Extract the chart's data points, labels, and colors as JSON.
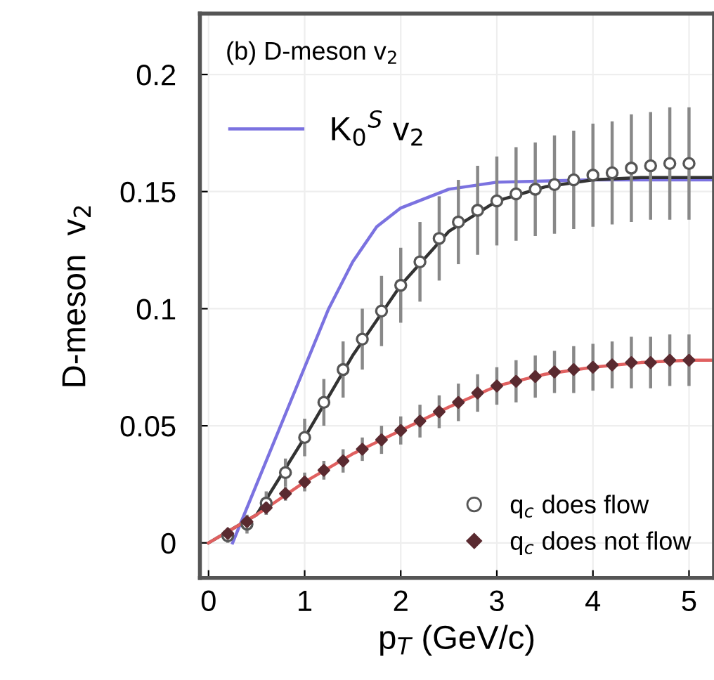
{
  "chart_data": {
    "type": "scatter",
    "title": "(b) D-meson v$_{2}$",
    "xlabel": "p$_{T}$ (GeV/c)",
    "ylabel": "D-meson  v$_{2}$",
    "xlim": [
      -0.09,
      5.26
    ],
    "ylim": [
      -0.015,
      0.226
    ],
    "xticks": [
      0,
      1,
      2,
      3,
      4,
      5
    ],
    "yticks": [
      0,
      0.05,
      0.1,
      0.15,
      0.2
    ],
    "grid": true,
    "legend": "bottom right",
    "series": [
      {
        "type": "line",
        "name": "K$_{0}$$^{S}$ v$_{2}$",
        "color": "#7b72e0",
        "x": [
          0.25,
          0.5,
          0.75,
          1,
          1.25,
          1.5,
          1.75,
          2,
          2.5,
          3,
          4,
          5.26
        ],
        "values": [
          0,
          0.025,
          0.05,
          0.075,
          0.1,
          0.12,
          0.135,
          0.143,
          0.151,
          0.154,
          0.155,
          0.155
        ]
      },
      {
        "type": "line",
        "color": "#333333",
        "x": [
          0,
          0.5,
          1,
          1.5,
          2,
          2.5,
          3,
          3.5,
          4,
          4.5,
          5,
          5.26
        ],
        "values": [
          0,
          0.012,
          0.045,
          0.08,
          0.11,
          0.133,
          0.146,
          0.152,
          0.155,
          0.156,
          0.156,
          0.156
        ]
      },
      {
        "type": "line",
        "color": "#e06060",
        "x": [
          0,
          0.5,
          1,
          1.5,
          2,
          2.5,
          3,
          3.5,
          4,
          4.5,
          5,
          5.26
        ],
        "values": [
          0,
          0.012,
          0.026,
          0.038,
          0.048,
          0.058,
          0.067,
          0.072,
          0.075,
          0.077,
          0.078,
          0.078
        ]
      },
      {
        "name": "q$_{c}$ does flow",
        "marker": "circle",
        "color": "#555555",
        "x": [
          0.2,
          0.4,
          0.6,
          0.8,
          1.0,
          1.2,
          1.4,
          1.6,
          1.8,
          2.0,
          2.2,
          2.4,
          2.6,
          2.8,
          3.0,
          3.2,
          3.4,
          3.6,
          3.8,
          4.0,
          4.2,
          4.4,
          4.6,
          4.8,
          5.0
        ],
        "values": [
          0.003,
          0.008,
          0.017,
          0.03,
          0.045,
          0.06,
          0.074,
          0.087,
          0.099,
          0.11,
          0.12,
          0.13,
          0.137,
          0.142,
          0.146,
          0.149,
          0.151,
          0.153,
          0.155,
          0.157,
          0.158,
          0.16,
          0.161,
          0.162,
          0.162
        ],
        "errors": [
          0.003,
          0.004,
          0.005,
          0.006,
          0.008,
          0.01,
          0.012,
          0.013,
          0.015,
          0.016,
          0.017,
          0.018,
          0.018,
          0.019,
          0.019,
          0.02,
          0.02,
          0.021,
          0.021,
          0.022,
          0.022,
          0.023,
          0.023,
          0.024,
          0.024
        ]
      },
      {
        "name": "q$_{c}$ does not flow",
        "marker": "diamond",
        "color": "#5a2a30",
        "x": [
          0.2,
          0.4,
          0.6,
          0.8,
          1.0,
          1.2,
          1.4,
          1.6,
          1.8,
          2.0,
          2.2,
          2.4,
          2.6,
          2.8,
          3.0,
          3.2,
          3.4,
          3.6,
          3.8,
          4.0,
          4.2,
          4.4,
          4.6,
          4.8,
          5.0
        ],
        "values": [
          0.004,
          0.009,
          0.015,
          0.021,
          0.026,
          0.031,
          0.035,
          0.04,
          0.044,
          0.048,
          0.052,
          0.056,
          0.06,
          0.064,
          0.067,
          0.069,
          0.071,
          0.073,
          0.074,
          0.075,
          0.076,
          0.077,
          0.077,
          0.078,
          0.078
        ],
        "errors": [
          0.002,
          0.002,
          0.003,
          0.003,
          0.004,
          0.004,
          0.005,
          0.005,
          0.006,
          0.006,
          0.007,
          0.007,
          0.008,
          0.008,
          0.008,
          0.009,
          0.009,
          0.009,
          0.01,
          0.01,
          0.01,
          0.011,
          0.011,
          0.011,
          0.011
        ]
      }
    ]
  }
}
